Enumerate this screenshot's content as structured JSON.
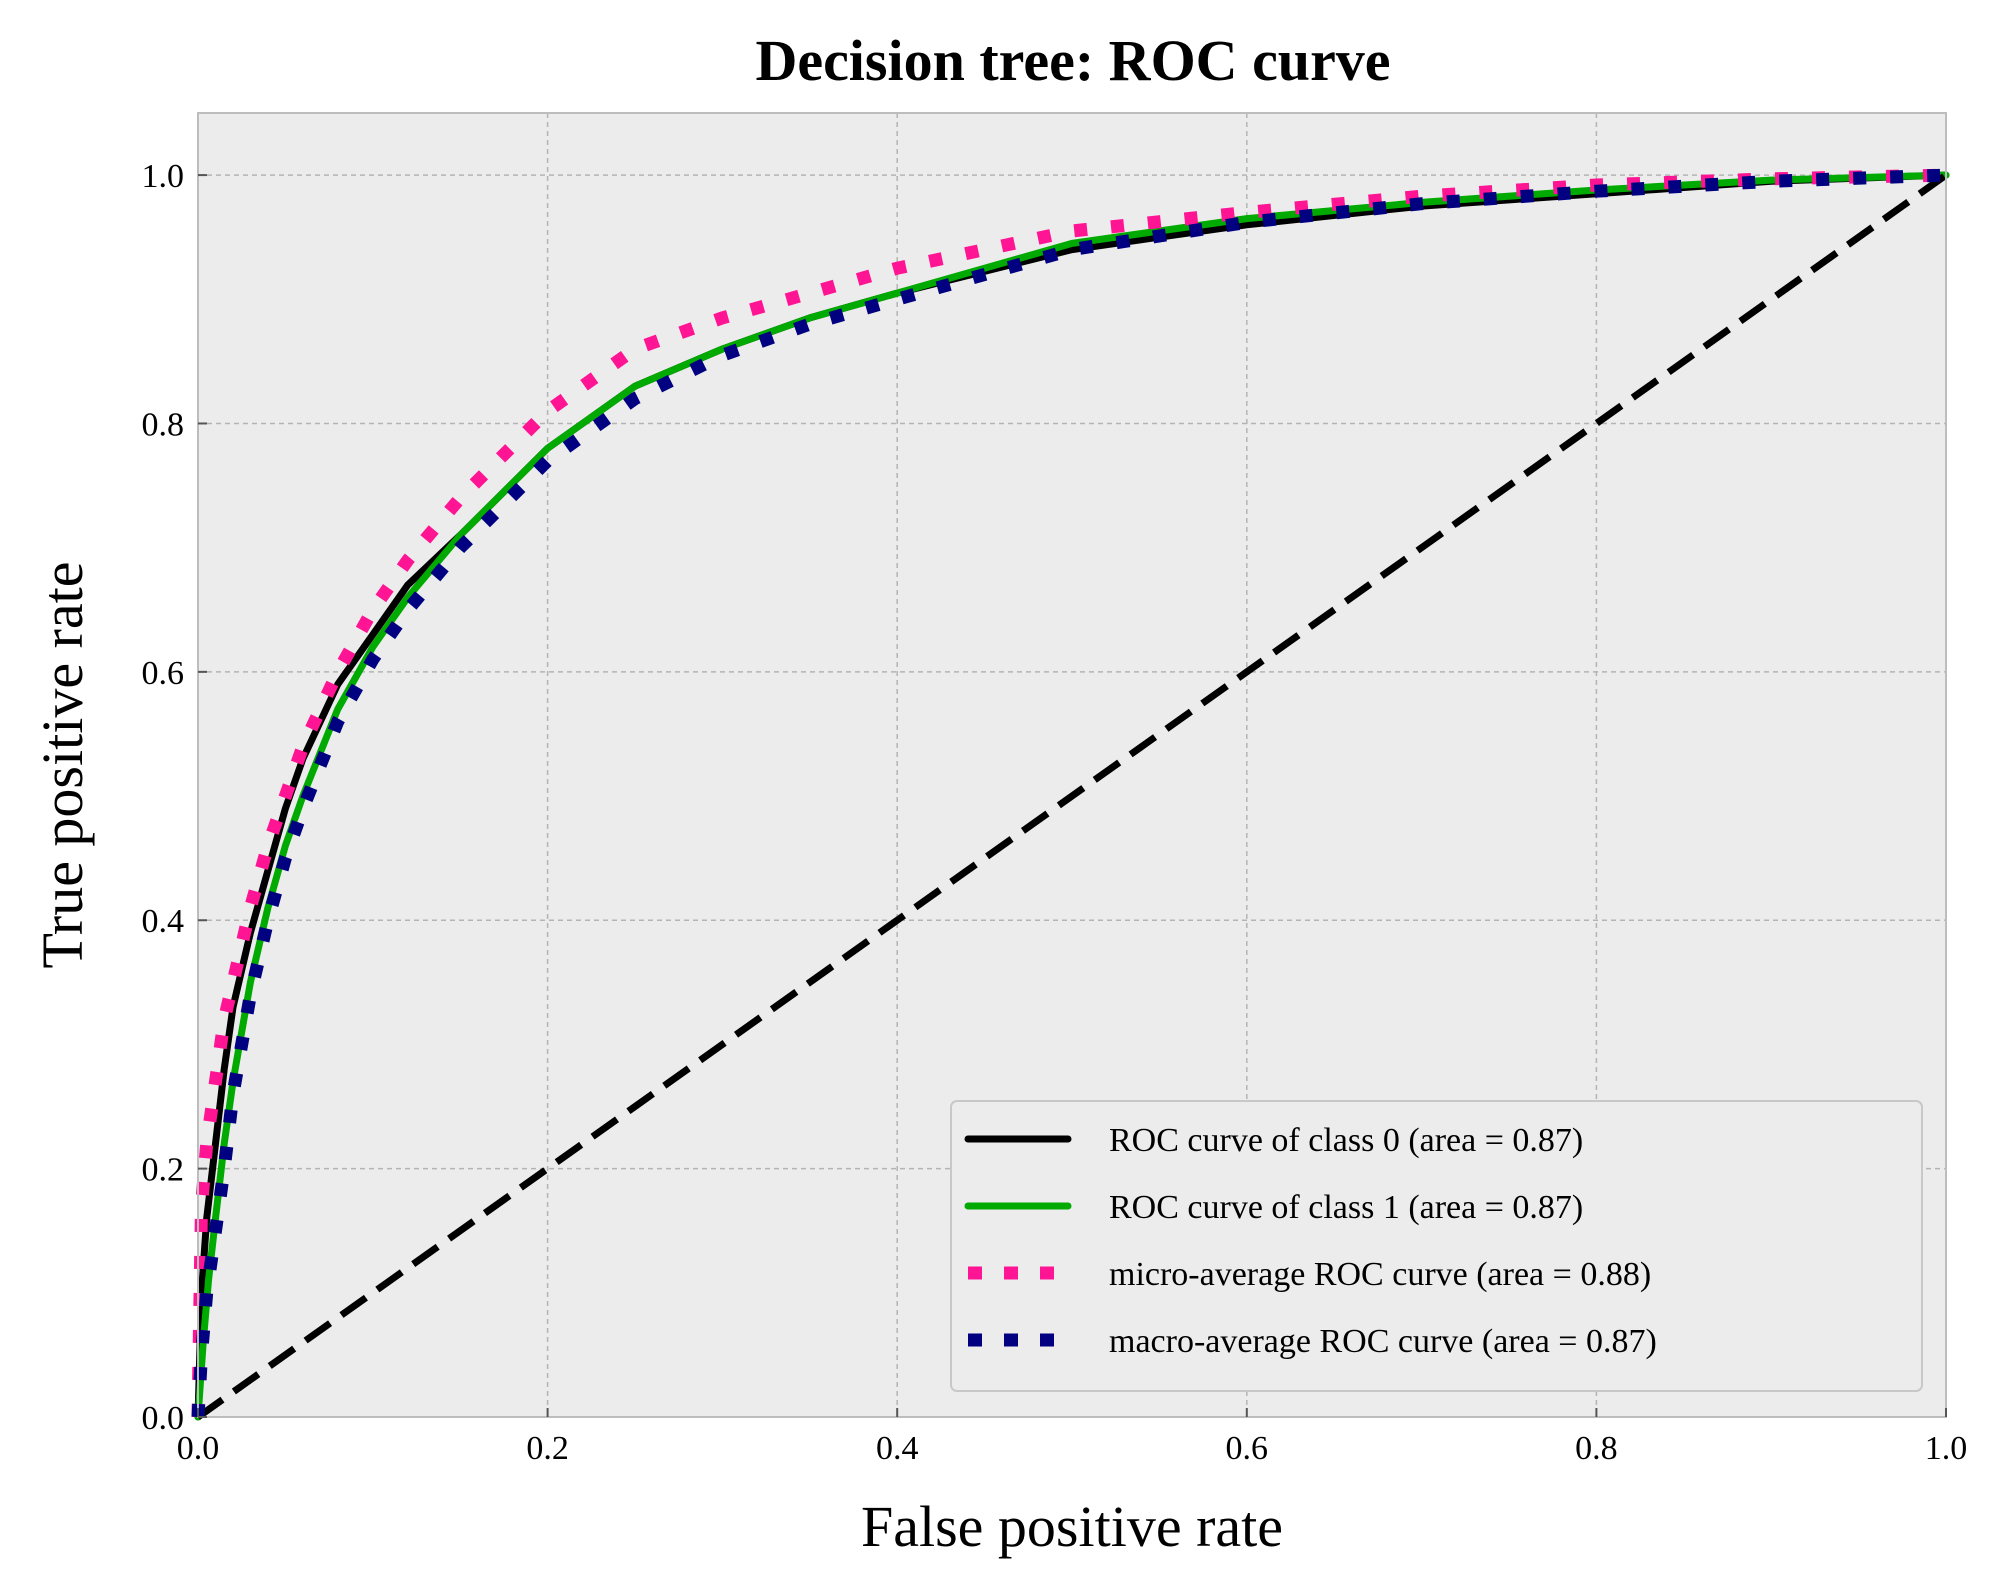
{
  "chart_data": {
    "type": "line",
    "title": "Decision tree: ROC curve",
    "xlabel": "False positive rate",
    "ylabel": "True positive rate",
    "xlim": [
      0.0,
      1.0
    ],
    "ylim": [
      0.0,
      1.05
    ],
    "xticks": [
      "0.0",
      "0.2",
      "0.4",
      "0.6",
      "0.8",
      "1.0"
    ],
    "yticks": [
      "0.0",
      "0.2",
      "0.4",
      "0.6",
      "0.8",
      "1.0"
    ],
    "grid": true,
    "legend_position": "lower-right",
    "background_color": "#ececec",
    "series": [
      {
        "name": "ROC curve of class 0 (area = 0.87)",
        "style": "solid",
        "color": "#000000",
        "x": [
          0.0,
          0.002,
          0.005,
          0.01,
          0.015,
          0.02,
          0.03,
          0.04,
          0.05,
          0.06,
          0.08,
          0.1,
          0.12,
          0.15,
          0.2,
          0.25,
          0.3,
          0.35,
          0.4,
          0.5,
          0.6,
          0.7,
          0.8,
          0.9,
          1.0
        ],
        "y": [
          0.0,
          0.1,
          0.16,
          0.22,
          0.28,
          0.33,
          0.39,
          0.44,
          0.49,
          0.53,
          0.59,
          0.63,
          0.67,
          0.71,
          0.78,
          0.83,
          0.86,
          0.885,
          0.905,
          0.94,
          0.96,
          0.975,
          0.985,
          0.995,
          1.0
        ]
      },
      {
        "name": "ROC curve of class 1 (area = 0.87)",
        "style": "solid",
        "color": "#00aa00",
        "x": [
          0.0,
          0.003,
          0.006,
          0.01,
          0.015,
          0.02,
          0.03,
          0.04,
          0.05,
          0.06,
          0.08,
          0.1,
          0.12,
          0.15,
          0.2,
          0.25,
          0.3,
          0.35,
          0.4,
          0.5,
          0.6,
          0.7,
          0.8,
          0.9,
          1.0
        ],
        "y": [
          0.0,
          0.06,
          0.11,
          0.16,
          0.22,
          0.27,
          0.35,
          0.41,
          0.46,
          0.5,
          0.57,
          0.62,
          0.66,
          0.71,
          0.78,
          0.83,
          0.86,
          0.885,
          0.905,
          0.945,
          0.965,
          0.978,
          0.988,
          0.996,
          1.0
        ]
      },
      {
        "name": "micro-average ROC curve (area = 0.88)",
        "style": "dotted",
        "color": "#ff1493",
        "x": [
          0.0,
          0.002,
          0.005,
          0.01,
          0.015,
          0.02,
          0.03,
          0.04,
          0.05,
          0.06,
          0.08,
          0.1,
          0.12,
          0.15,
          0.2,
          0.25,
          0.3,
          0.35,
          0.4,
          0.5,
          0.6,
          0.7,
          0.8,
          0.9,
          1.0
        ],
        "y": [
          0.0,
          0.17,
          0.22,
          0.27,
          0.32,
          0.35,
          0.41,
          0.46,
          0.5,
          0.54,
          0.6,
          0.65,
          0.69,
          0.74,
          0.81,
          0.86,
          0.885,
          0.905,
          0.925,
          0.955,
          0.97,
          0.983,
          0.992,
          0.997,
          1.0
        ]
      },
      {
        "name": "macro-average ROC curve (area = 0.87)",
        "style": "dotted",
        "color": "#000080",
        "x": [
          0.0,
          0.002,
          0.005,
          0.01,
          0.015,
          0.02,
          0.03,
          0.04,
          0.05,
          0.06,
          0.08,
          0.1,
          0.12,
          0.15,
          0.2,
          0.25,
          0.3,
          0.35,
          0.4,
          0.5,
          0.6,
          0.7,
          0.8,
          0.9,
          1.0
        ],
        "y": [
          0.0,
          0.05,
          0.1,
          0.15,
          0.2,
          0.26,
          0.34,
          0.4,
          0.45,
          0.49,
          0.56,
          0.61,
          0.65,
          0.7,
          0.77,
          0.82,
          0.855,
          0.88,
          0.9,
          0.94,
          0.962,
          0.977,
          0.987,
          0.995,
          1.0
        ]
      },
      {
        "name": "",
        "style": "dashed",
        "color": "#000000",
        "x": [
          0.0,
          1.0
        ],
        "y": [
          0.0,
          1.0
        ]
      }
    ]
  }
}
